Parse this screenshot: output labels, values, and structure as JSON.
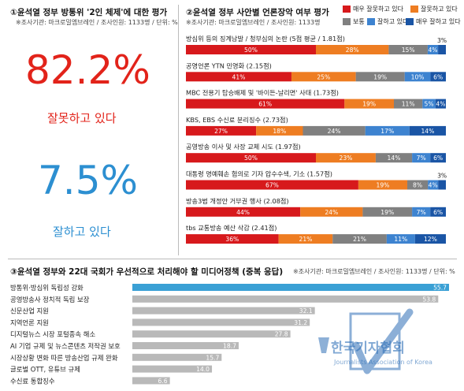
{
  "panel1": {
    "title": "①윤석열 정부 방통위 '2인 체제'에 대한 평가",
    "note": "※조사기관: 마크로밀엠브레인 / 조사인원: 1133명 / 단위: %",
    "wrong_value": "82.2%",
    "wrong_label": "잘못하고 있다",
    "good_value": "7.5%",
    "good_label": "잘하고 있다"
  },
  "panel2": {
    "title": "②윤석열 정부 사안별 언론장악 여부 평가",
    "note": "※조사기관: 마크로밀엠브레인 / 조사인원: 1133명"
  },
  "panel3": {
    "title": "③윤석열 정부와 22대 국회가 우선적으로 처리해야 할 미디어정책 (중복 응답)",
    "note": "※조사기관: 마크로밀엠브레인 / 조사인원: 1133명 / 단위: %"
  },
  "watermark": {
    "text": "한국기자협회",
    "subtext": "Journalists Association of Korea"
  },
  "colors": {
    "very_wrong": "#d7191c",
    "wrong": "#ee7d22",
    "neutral": "#808080",
    "good": "#3d83d0",
    "very_good": "#1a55a5",
    "accent_value": "#e2231a",
    "accent_good": "#2c8fd1",
    "highlight_bar": "#3aa0d5",
    "gray_bar": "#b9b9b9"
  },
  "chart_data": [
    {
      "type": "bar",
      "orientation": "horizontal",
      "stacked": true,
      "unit": "%",
      "legend_position": "top-right",
      "categories": [
        "방심위 등의 징계남발 / 청부심의 논란 (5점 평균 / 1.81점)",
        "공영언론 YTN 민영화 (2.15점)",
        "MBC 전용기 탑승배제 및 '바이든-날리면' 사태 (1.73점)",
        "KBS, EBS 수신료 분리징수 (2.73점)",
        "공영방송 이사 및 사장 교체 시도 (1.97점)",
        "대통령 명예훼손 혐의로 기자 압수수색, 기소 (1.57점)",
        "방송3법 개정안 거부권 행사 (2.08점)",
        "tbs 교통방송 예산 삭감 (2.41점)"
      ],
      "series": [
        {
          "name": "매우 잘못하고 있다",
          "values": [
            50,
            41,
            61,
            27,
            50,
            67,
            44,
            36
          ]
        },
        {
          "name": "잘못하고 있다",
          "values": [
            28,
            25,
            19,
            18,
            23,
            19,
            24,
            21
          ]
        },
        {
          "name": "보통",
          "values": [
            15,
            19,
            11,
            24,
            14,
            8,
            19,
            21
          ]
        },
        {
          "name": "잘하고 있다",
          "values": [
            4,
            10,
            5,
            17,
            7,
            4,
            7,
            11
          ]
        },
        {
          "name": "매우 잘하고 있다",
          "values": [
            3,
            6,
            4,
            14,
            6,
            3,
            6,
            12
          ]
        }
      ],
      "labels": [
        [
          "50%",
          "28%",
          "15%",
          "4%",
          "3%"
        ],
        [
          "41%",
          "25%",
          "19%",
          "10%",
          "6%"
        ],
        [
          "61%",
          "19%",
          "11%",
          "5%",
          "4%"
        ],
        [
          "27%",
          "18%",
          "24%",
          "17%",
          "14%"
        ],
        [
          "50%",
          "23%",
          "14%",
          "7%",
          "6%"
        ],
        [
          "67%",
          "19%",
          "8%",
          "4%",
          "3%"
        ],
        [
          "44%",
          "24%",
          "19%",
          "7%",
          "6%"
        ],
        [
          "36%",
          "21%",
          "21%",
          "11%",
          "12%"
        ]
      ]
    },
    {
      "type": "bar",
      "orientation": "horizontal",
      "unit": "%",
      "categories": [
        "방통위·방심위 독립성 강화",
        "공영방송사 정치적 독립 보장",
        "신문산업 지원",
        "지역언론 지원",
        "디지털뉴스 시장 포털종속 해소",
        "AI 기업 규제 및 뉴스콘텐츠 저작권 보호",
        "시장상황 변화 따른 방송산업 규제 완화",
        "글로벌 OTT, 유튜브 규제",
        "수신료 통합징수"
      ],
      "values": [
        55.7,
        53.8,
        32.1,
        31.2,
        27.8,
        18.7,
        15.7,
        14.0,
        6.6
      ],
      "value_labels": [
        "55.7",
        "53.8",
        "32.1",
        "31.2",
        "27.8",
        "18.7",
        "15.7",
        "14.0",
        "6.6"
      ]
    }
  ]
}
